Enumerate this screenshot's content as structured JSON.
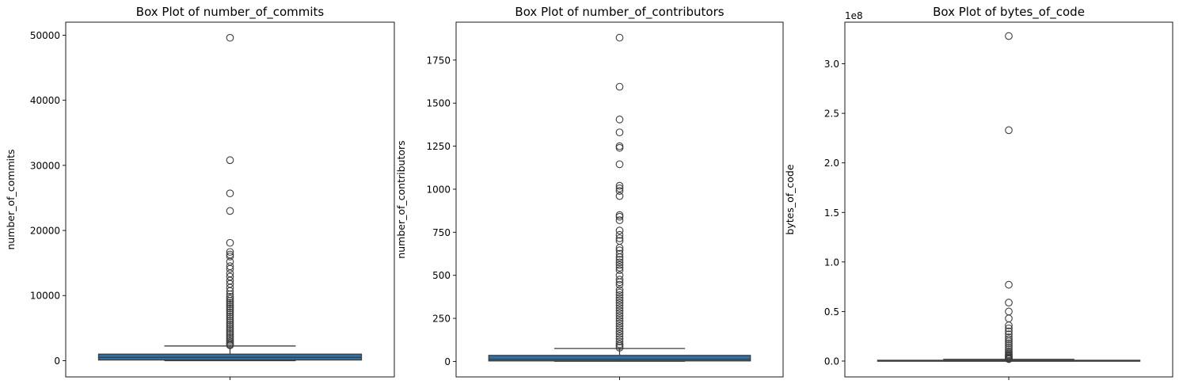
{
  "chart_data": [
    {
      "type": "box",
      "title": "Box Plot of number_of_commits",
      "xlabel": "",
      "ylabel": "number_of_commits",
      "ylim": [
        -2500,
        52000
      ],
      "yticks": [
        0,
        10000,
        20000,
        30000,
        40000,
        50000
      ],
      "ytick_labels": [
        "0",
        "10000",
        "20000",
        "30000",
        "40000",
        "50000"
      ],
      "offset_label": "",
      "box": {
        "q1": 100,
        "median": 500,
        "q3": 1000,
        "whisker_low": 0,
        "whisker_high": 2250
      },
      "box_color": "#2f6fa5",
      "outliers": [
        49600,
        30800,
        25700,
        23000,
        18100,
        16700,
        16300,
        16000,
        15200,
        14500,
        14100,
        13400,
        12900,
        12300,
        11800,
        11200,
        10700,
        10200,
        9800,
        9500,
        9200,
        8900,
        8600,
        8300,
        8000,
        7700,
        7400,
        7100,
        6800,
        6500,
        6200,
        5900,
        5600,
        5300,
        5000,
        4700,
        4400,
        4100,
        3800,
        3500,
        3200,
        2950,
        2700,
        2500,
        2350
      ]
    },
    {
      "type": "box",
      "title": "Box Plot of number_of_contributors",
      "xlabel": "",
      "ylabel": "number_of_contributors",
      "ylim": [
        -90,
        1970
      ],
      "yticks": [
        0,
        250,
        500,
        750,
        1000,
        1250,
        1500,
        1750
      ],
      "ytick_labels": [
        "0",
        "250",
        "500",
        "750",
        "1000",
        "1250",
        "1500",
        "1750"
      ],
      "offset_label": "",
      "box": {
        "q1": 3,
        "median": 12,
        "q3": 35,
        "whisker_low": 1,
        "whisker_high": 75
      },
      "box_color": "#2f6fa5",
      "outliers": [
        1880,
        1595,
        1405,
        1330,
        1250,
        1240,
        1145,
        1020,
        1005,
        990,
        960,
        850,
        840,
        820,
        760,
        735,
        715,
        700,
        660,
        645,
        625,
        605,
        590,
        575,
        560,
        545,
        530,
        500,
        475,
        460,
        445,
        415,
        400,
        385,
        370,
        355,
        340,
        325,
        310,
        295,
        280,
        265,
        250,
        235,
        220,
        205,
        190,
        175,
        160,
        145,
        130,
        115,
        100,
        90,
        80
      ]
    },
    {
      "type": "box",
      "title": "Box Plot of bytes_of_code",
      "xlabel": "",
      "ylabel": "bytes_of_code",
      "ylim": [
        -16000000.0,
        342000000.0
      ],
      "yticks": [
        0,
        50000000.0,
        100000000.0,
        150000000.0,
        200000000.0,
        250000000.0,
        300000000.0
      ],
      "ytick_labels": [
        "0.0",
        "0.5",
        "1.0",
        "1.5",
        "2.0",
        "2.5",
        "3.0"
      ],
      "offset_label": "1e8",
      "box": {
        "q1": 50000,
        "median": 200000,
        "q3": 800000,
        "whisker_low": 0,
        "whisker_high": 1800000
      },
      "box_color": "#2f6fa5",
      "outliers": [
        328000000,
        233000000,
        77000000,
        59000000,
        50000000,
        43000000,
        36000000,
        33000000,
        30000000,
        27000000,
        24000000,
        22000000,
        20000000,
        18000000,
        16000000,
        14000000,
        12000000,
        10000000,
        8500000,
        7000000,
        6000000,
        5000000,
        4000000,
        3200000,
        2600000,
        2200000,
        2000000
      ]
    }
  ]
}
